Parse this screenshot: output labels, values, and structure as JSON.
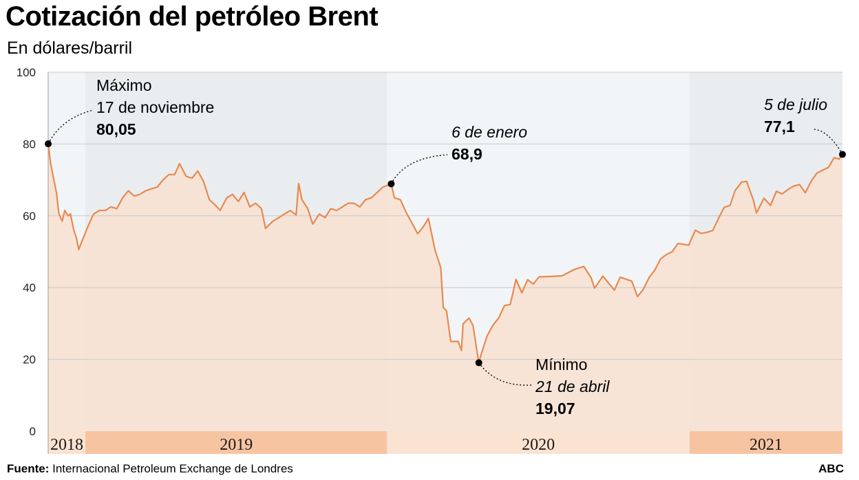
{
  "header": {
    "title": "Cotización del petróleo Brent",
    "subtitle": "En dólares/barril"
  },
  "footer": {
    "source_label": "Fuente:",
    "source_text": "Internacional Petroleum Exchange de Londres",
    "brand": "ABC"
  },
  "colors": {
    "line": "#e8894e",
    "area": "#f9e1cf",
    "bg_light": "#f2f5f7",
    "bg_dark": "#e9edf0",
    "year_band_light": "#fbe3d1",
    "year_band_dark": "#f7c4a2",
    "grid": "#c8c8c8"
  },
  "chart_data": {
    "type": "area",
    "ylim": [
      0,
      100
    ],
    "yticks": [
      "0",
      "20",
      "40",
      "60",
      "80",
      "100"
    ],
    "x_unit": "date",
    "years": [
      {
        "label": "2018",
        "start": "2018-11-17",
        "end": "2018-12-31"
      },
      {
        "label": "2019",
        "start": "2019-01-01",
        "end": "2019-12-31"
      },
      {
        "label": "2020",
        "start": "2020-01-01",
        "end": "2020-12-31"
      },
      {
        "label": "2021",
        "start": "2021-01-01",
        "end": "2021-07-05"
      }
    ],
    "series": [
      {
        "points": [
          [
            "2018-11-17",
            80.05
          ],
          [
            "2018-11-20",
            74.5
          ],
          [
            "2018-11-23",
            71.0
          ],
          [
            "2018-11-27",
            66.5
          ],
          [
            "2018-11-30",
            60.5
          ],
          [
            "2018-12-04",
            58.5
          ],
          [
            "2018-12-07",
            61.5
          ],
          [
            "2018-12-11",
            60.0
          ],
          [
            "2018-12-14",
            60.5
          ],
          [
            "2018-12-18",
            56.0
          ],
          [
            "2018-12-21",
            54.0
          ],
          [
            "2018-12-24",
            50.6
          ],
          [
            "2018-12-28",
            53.0
          ],
          [
            "2019-01-04",
            57.0
          ],
          [
            "2019-01-11",
            60.5
          ],
          [
            "2019-01-18",
            61.5
          ],
          [
            "2019-01-25",
            61.5
          ],
          [
            "2019-02-01",
            62.5
          ],
          [
            "2019-02-08",
            62.0
          ],
          [
            "2019-02-15",
            65.0
          ],
          [
            "2019-02-22",
            67.0
          ],
          [
            "2019-03-01",
            65.5
          ],
          [
            "2019-03-08",
            66.0
          ],
          [
            "2019-03-15",
            67.0
          ],
          [
            "2019-03-22",
            67.5
          ],
          [
            "2019-03-29",
            68.0
          ],
          [
            "2019-04-05",
            70.0
          ],
          [
            "2019-04-12",
            71.5
          ],
          [
            "2019-04-19",
            71.5
          ],
          [
            "2019-04-25",
            74.5
          ],
          [
            "2019-05-03",
            71.0
          ],
          [
            "2019-05-10",
            70.5
          ],
          [
            "2019-05-17",
            72.5
          ],
          [
            "2019-05-24",
            69.5
          ],
          [
            "2019-05-31",
            64.5
          ],
          [
            "2019-06-07",
            63.0
          ],
          [
            "2019-06-13",
            61.5
          ],
          [
            "2019-06-21",
            65.0
          ],
          [
            "2019-06-28",
            66.0
          ],
          [
            "2019-07-05",
            64.0
          ],
          [
            "2019-07-12",
            66.5
          ],
          [
            "2019-07-19",
            62.5
          ],
          [
            "2019-07-26",
            63.5
          ],
          [
            "2019-08-02",
            62.0
          ],
          [
            "2019-08-07",
            56.5
          ],
          [
            "2019-08-16",
            58.5
          ],
          [
            "2019-08-23",
            59.5
          ],
          [
            "2019-08-30",
            60.5
          ],
          [
            "2019-09-06",
            61.5
          ],
          [
            "2019-09-13",
            60.2
          ],
          [
            "2019-09-16",
            69.0
          ],
          [
            "2019-09-20",
            64.5
          ],
          [
            "2019-09-27",
            62.0
          ],
          [
            "2019-10-03",
            57.7
          ],
          [
            "2019-10-11",
            60.5
          ],
          [
            "2019-10-18",
            59.5
          ],
          [
            "2019-10-25",
            62.0
          ],
          [
            "2019-11-01",
            61.5
          ],
          [
            "2019-11-08",
            62.5
          ],
          [
            "2019-11-15",
            63.5
          ],
          [
            "2019-11-22",
            63.5
          ],
          [
            "2019-11-29",
            62.5
          ],
          [
            "2019-12-06",
            64.5
          ],
          [
            "2019-12-13",
            65.0
          ],
          [
            "2019-12-20",
            66.5
          ],
          [
            "2019-12-27",
            68.0
          ],
          [
            "2020-01-03",
            68.6
          ],
          [
            "2020-01-06",
            68.9
          ],
          [
            "2020-01-10",
            65.0
          ],
          [
            "2020-01-17",
            64.5
          ],
          [
            "2020-01-24",
            61.0
          ],
          [
            "2020-01-31",
            58.0
          ],
          [
            "2020-02-07",
            55.0
          ],
          [
            "2020-02-14",
            57.0
          ],
          [
            "2020-02-20",
            59.3
          ],
          [
            "2020-02-28",
            50.5
          ],
          [
            "2020-03-06",
            45.5
          ],
          [
            "2020-03-09",
            34.5
          ],
          [
            "2020-03-13",
            33.5
          ],
          [
            "2020-03-18",
            25.0
          ],
          [
            "2020-03-27",
            25.0
          ],
          [
            "2020-03-31",
            22.5
          ],
          [
            "2020-04-02",
            29.9
          ],
          [
            "2020-04-09",
            31.5
          ],
          [
            "2020-04-14",
            29.5
          ],
          [
            "2020-04-21",
            19.07
          ],
          [
            "2020-04-24",
            21.5
          ],
          [
            "2020-05-01",
            26.5
          ],
          [
            "2020-05-08",
            29.5
          ],
          [
            "2020-05-15",
            31.5
          ],
          [
            "2020-05-22",
            35.0
          ],
          [
            "2020-05-29",
            35.3
          ],
          [
            "2020-06-05",
            42.3
          ],
          [
            "2020-06-12",
            38.5
          ],
          [
            "2020-06-19",
            42.2
          ],
          [
            "2020-06-26",
            41.0
          ],
          [
            "2020-07-03",
            43.0
          ],
          [
            "2020-07-17",
            43.1
          ],
          [
            "2020-07-31",
            43.3
          ],
          [
            "2020-08-14",
            45.0
          ],
          [
            "2020-08-26",
            45.9
          ],
          [
            "2020-09-04",
            42.7
          ],
          [
            "2020-09-08",
            39.8
          ],
          [
            "2020-09-18",
            43.2
          ],
          [
            "2020-10-02",
            39.3
          ],
          [
            "2020-10-09",
            42.9
          ],
          [
            "2020-10-23",
            41.8
          ],
          [
            "2020-10-30",
            37.5
          ],
          [
            "2020-11-06",
            39.5
          ],
          [
            "2020-11-13",
            42.8
          ],
          [
            "2020-11-20",
            44.9
          ],
          [
            "2020-11-27",
            48.0
          ],
          [
            "2020-12-04",
            49.2
          ],
          [
            "2020-12-11",
            50.0
          ],
          [
            "2020-12-18",
            52.3
          ],
          [
            "2020-12-31",
            51.8
          ],
          [
            "2021-01-08",
            55.99
          ],
          [
            "2021-01-15",
            55.1
          ],
          [
            "2021-01-22",
            55.4
          ],
          [
            "2021-01-29",
            55.9
          ],
          [
            "2021-02-05",
            59.3
          ],
          [
            "2021-02-12",
            62.4
          ],
          [
            "2021-02-19",
            62.9
          ],
          [
            "2021-02-25",
            67.0
          ],
          [
            "2021-03-05",
            69.4
          ],
          [
            "2021-03-11",
            69.6
          ],
          [
            "2021-03-19",
            64.5
          ],
          [
            "2021-03-23",
            60.8
          ],
          [
            "2021-04-01",
            64.9
          ],
          [
            "2021-04-09",
            62.9
          ],
          [
            "2021-04-16",
            66.8
          ],
          [
            "2021-04-23",
            66.1
          ],
          [
            "2021-04-30",
            67.3
          ],
          [
            "2021-05-07",
            68.3
          ],
          [
            "2021-05-14",
            68.7
          ],
          [
            "2021-05-21",
            66.4
          ],
          [
            "2021-05-28",
            69.6
          ],
          [
            "2021-06-04",
            71.9
          ],
          [
            "2021-06-11",
            72.7
          ],
          [
            "2021-06-18",
            73.5
          ],
          [
            "2021-06-25",
            76.2
          ],
          [
            "2021-07-01",
            75.8
          ],
          [
            "2021-07-05",
            77.1
          ]
        ]
      }
    ],
    "annotations": [
      {
        "date": "2018-11-17",
        "value": 80.05,
        "lines": [
          "Máximo",
          "17 de noviembre",
          "80,05"
        ],
        "styles": [
          "normal",
          "normal",
          "bold"
        ]
      },
      {
        "date": "2020-01-06",
        "value": 68.9,
        "lines": [
          "6 de enero",
          "68,9"
        ],
        "styles": [
          "italic",
          "bold"
        ]
      },
      {
        "date": "2020-04-21",
        "value": 19.07,
        "lines": [
          "Mínimo",
          "21 de abril",
          "19,07"
        ],
        "styles": [
          "normal",
          "italic",
          "bold"
        ]
      },
      {
        "date": "2021-07-05",
        "value": 77.1,
        "lines": [
          "5  de julio",
          "77,1"
        ],
        "styles": [
          "italic",
          "bold"
        ]
      }
    ],
    "grid": true,
    "legend": "none"
  }
}
